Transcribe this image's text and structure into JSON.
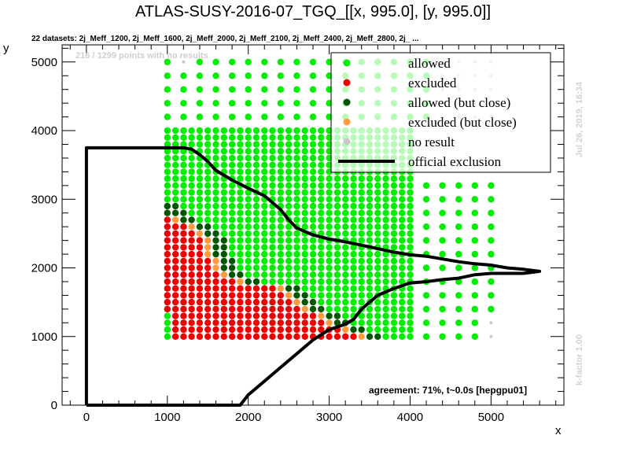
{
  "chart_data": {
    "type": "scatter",
    "title": "ATLAS-SUSY-2016-07_TGQ_[[x, 995.0], [y, 995.0]]",
    "subtitle": "22 datasets: 2j_Meff_1200, 2j_Meff_1600, 2j_Meff_2000, 2j_Meff_2100, 2j_Meff_2400, 2j_Meff_2800, 2j_ ...",
    "xlabel": "x",
    "ylabel": "y",
    "xlim": [
      -300,
      5900
    ],
    "ylim": [
      0,
      5250
    ],
    "x_ticks": [
      0,
      1000,
      2000,
      3000,
      4000,
      5000
    ],
    "y_ticks": [
      0,
      1000,
      2000,
      3000,
      4000,
      5000
    ],
    "no_result_note": "216 / 1299 points with no results",
    "agreement": "agreement: 71%, t~0.0s [hepgpu01]",
    "date_note": "Jul 26, 2019, 16:34",
    "kfactor_note": "k-factor 1.00",
    "legend": {
      "placement": "top-right",
      "items": [
        {
          "key": "allowed",
          "label": "allowed",
          "color": "#00ee00",
          "marker": "dot"
        },
        {
          "key": "excluded",
          "label": "excluded",
          "color": "#ee0000",
          "marker": "dot"
        },
        {
          "key": "allowed_close",
          "label": "allowed (but close)",
          "color": "#005500",
          "marker": "dot"
        },
        {
          "key": "excluded_close",
          "label": "excluded (but close)",
          "color": "#ff9a40",
          "marker": "dot"
        },
        {
          "key": "no_result",
          "label": "no result",
          "color": "#c8c8c8",
          "marker": "dot"
        },
        {
          "key": "official",
          "label": "official exclusion",
          "color": "#000000",
          "marker": "line"
        }
      ]
    },
    "colors": {
      "allowed": "#00ee00",
      "excluded": "#ee0000",
      "allowed_close": "#005500",
      "excluded_close": "#ff9a40",
      "no_result": "#c8c8c8",
      "official": "#000000"
    },
    "grid": {
      "dense_x_range": [
        1000,
        4000
      ],
      "dense_step": 100,
      "dense_y_range": [
        1000,
        4000
      ],
      "sparse_x": [
        1000,
        1200,
        1400,
        1600,
        1800,
        2000,
        2200,
        2400,
        2600,
        2800,
        3000,
        3200,
        3400,
        3600,
        3800,
        4000,
        4200,
        4400,
        4600,
        4800,
        5000
      ],
      "sparse_y_upper": [
        4200,
        4400,
        4600,
        4800,
        5000
      ],
      "right_x": [
        4200,
        4400,
        4600,
        4800,
        5000
      ],
      "right_y": [
        1000,
        1200,
        1400,
        1600,
        1800,
        2000,
        2200,
        2400,
        2600,
        2800,
        3000,
        3200
      ]
    },
    "excluded_region": {
      "y_rows": [
        1000,
        1100,
        1200,
        1300,
        1400,
        1500,
        1600,
        1700,
        1800,
        1900,
        2000,
        2100,
        2200,
        2300,
        2400,
        2500,
        2600,
        2700
      ],
      "x_max": [
        3400,
        3200,
        3000,
        2900,
        2700,
        2600,
        2500,
        2400,
        1900,
        1700,
        1600,
        1600,
        1500,
        1500,
        1500,
        1400,
        1300,
        1100
      ],
      "x_min": [
        1100,
        1100,
        1100,
        1100,
        1000,
        1000,
        1000,
        1000,
        1000,
        1000,
        1000,
        1000,
        1000,
        1000,
        1000,
        1000,
        1000,
        1000
      ]
    },
    "official_exclusion": {
      "x": [
        0,
        0,
        1200,
        1300,
        1400,
        1500,
        1600,
        1800,
        2000,
        2200,
        2300,
        2400,
        2500,
        2600,
        2800,
        3000,
        3200,
        3400,
        3600,
        3800,
        4000,
        4200,
        4400,
        4600,
        4800,
        5000,
        5200,
        5400,
        5600,
        5400,
        5200,
        5000,
        4800,
        4600,
        4400,
        4200,
        4000,
        3800,
        3600,
        3500,
        3400,
        3300,
        3200,
        3000,
        2800,
        2600,
        2400,
        2200,
        2000,
        1900,
        0
      ],
      "y": [
        0,
        3750,
        3750,
        3730,
        3650,
        3550,
        3420,
        3280,
        3160,
        3050,
        2950,
        2850,
        2700,
        2580,
        2480,
        2420,
        2380,
        2330,
        2280,
        2230,
        2190,
        2170,
        2130,
        2090,
        2060,
        2040,
        2000,
        1980,
        1950,
        1920,
        1920,
        1920,
        1900,
        1850,
        1830,
        1800,
        1780,
        1700,
        1600,
        1500,
        1400,
        1250,
        1180,
        1100,
        950,
        750,
        550,
        350,
        150,
        0,
        0
      ]
    }
  }
}
